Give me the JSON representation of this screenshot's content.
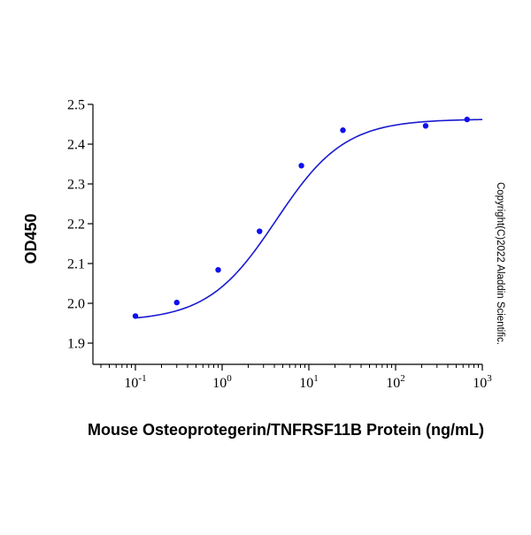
{
  "chart_data": {
    "type": "scatter",
    "xlabel": "Mouse Osteoprotegerin/TNFRSF11B Protein (ng/mL)",
    "ylabel": "OD450",
    "x_scale": "log",
    "xlim": [
      0.1,
      1000
    ],
    "ylim": [
      1.9,
      2.5
    ],
    "x_ticks": [
      {
        "base": "10",
        "exp": "-1",
        "value": 0.1
      },
      {
        "base": "10",
        "exp": "0",
        "value": 1
      },
      {
        "base": "10",
        "exp": "1",
        "value": 10
      },
      {
        "base": "10",
        "exp": "2",
        "value": 100
      },
      {
        "base": "10",
        "exp": "3",
        "value": 1000
      }
    ],
    "y_ticks": [
      "1.9",
      "2.0",
      "2.1",
      "2.2",
      "2.3",
      "2.4",
      "2.5"
    ],
    "series": [
      {
        "x": [
          0.1,
          0.3,
          0.9,
          2.7,
          8.2,
          24.7,
          222,
          667
        ],
        "y": [
          1.968,
          2.002,
          2.084,
          2.181,
          2.346,
          2.435,
          2.446,
          2.462
        ]
      }
    ],
    "fit_curve": {
      "type": "4PL",
      "bottom": 1.955,
      "top": 2.463,
      "ec50": 4.2,
      "hill": 1.1
    },
    "point_color": "#1010ee",
    "line_color": "#1a1ad0",
    "grid": false,
    "legend": "none",
    "annotation": "Copyright(C)2022 Aladdin Scientific."
  }
}
